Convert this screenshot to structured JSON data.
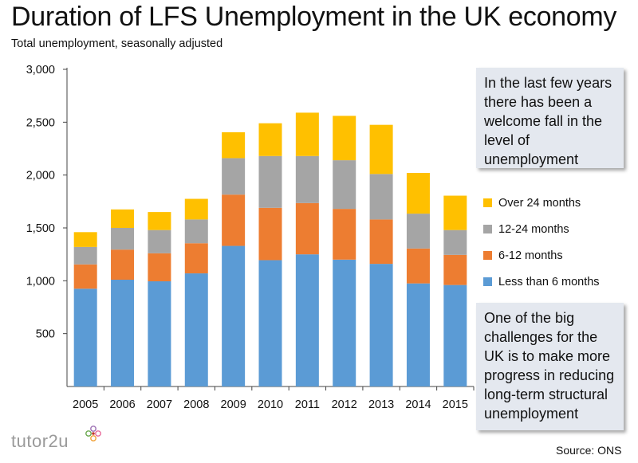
{
  "title": "Duration of LFS Unemployment in the UK economy",
  "subtitle": "Total unemployment, seasonally adjusted",
  "callouts": {
    "top": "In the last few years there has been a welcome fall in the level of unemployment",
    "bottom": "One of the big challenges for the UK is to make more progress in reducing long-term structural unemployment"
  },
  "logo": "tutor2u",
  "source": "Source: ONS",
  "chart_data": {
    "type": "bar",
    "stacked": true,
    "categories": [
      "2005",
      "2006",
      "2007",
      "2008",
      "2009",
      "2010",
      "2011",
      "2012",
      "2013",
      "2014",
      "2015"
    ],
    "series": [
      {
        "name": "Less than 6 months",
        "color": "#5b9bd5",
        "values": [
          925,
          1010,
          995,
          1070,
          1330,
          1195,
          1250,
          1200,
          1160,
          975,
          960
        ]
      },
      {
        "name": "6-12 months",
        "color": "#ed7d31",
        "values": [
          230,
          285,
          265,
          285,
          485,
          495,
          485,
          480,
          420,
          330,
          285
        ]
      },
      {
        "name": "12-24 months",
        "color": "#a5a5a5",
        "values": [
          165,
          205,
          220,
          225,
          345,
          490,
          445,
          460,
          430,
          330,
          235
        ]
      },
      {
        "name": "Over 24 months",
        "color": "#ffc000",
        "values": [
          140,
          175,
          170,
          195,
          245,
          310,
          410,
          420,
          465,
          385,
          325
        ]
      }
    ],
    "legend_order": [
      "Over 24 months",
      "12-24 months",
      "6-12 months",
      "Less than 6 months"
    ],
    "ylim": [
      0,
      3000
    ],
    "yticks": [
      500,
      1000,
      1500,
      2000,
      2500,
      3000
    ],
    "ytick_labels": [
      "500",
      "1,000",
      "1,500",
      "2,000",
      "2,500",
      "3,000"
    ],
    "grid": false,
    "legend_position": "right"
  }
}
